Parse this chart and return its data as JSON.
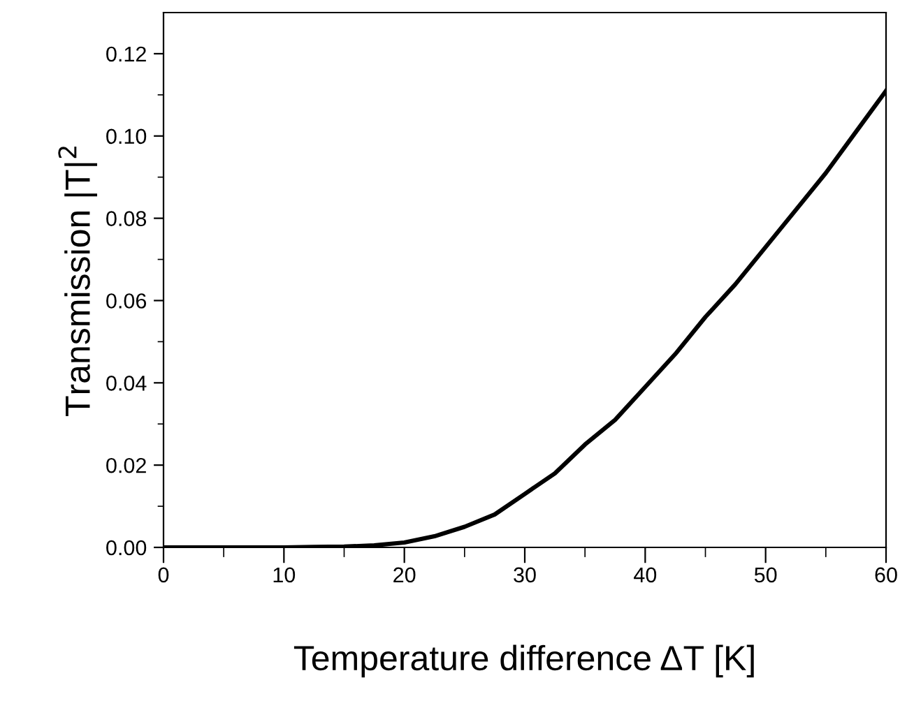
{
  "chart_data": {
    "type": "line",
    "xlabel": "Temperature difference ΔT [K]",
    "ylabel": "Transmission |T|$^{2}$",
    "x": [
      0,
      5,
      10,
      12.5,
      15,
      17.5,
      20,
      22.5,
      25,
      27.5,
      30,
      32.5,
      35,
      37.5,
      40,
      42.5,
      45,
      47.5,
      50,
      52.5,
      55,
      57.5,
      60
    ],
    "series": [
      {
        "color": "#000000",
        "values": [
          0,
          0,
          0,
          0.0001,
          0.0002,
          0.0005,
          0.0012,
          0.0027,
          0.005,
          0.008,
          0.013,
          0.018,
          0.025,
          0.031,
          0.039,
          0.047,
          0.056,
          0.064,
          0.073,
          0.082,
          0.091,
          0.101,
          0.111
        ]
      }
    ],
    "xlim": [
      0,
      60
    ],
    "xticks": [
      0,
      10,
      20,
      30,
      40,
      50,
      60
    ],
    "ylim": [
      0,
      0.13
    ],
    "yticks": [
      {
        "value": 0,
        "label": "0.00"
      },
      {
        "value": 0.02,
        "label": "0.02"
      },
      {
        "value": 0.04,
        "label": "0.04"
      },
      {
        "value": 0.06,
        "label": "0.06"
      },
      {
        "value": 0.08,
        "label": "0.08"
      },
      {
        "value": 0.1,
        "label": "0.10"
      },
      {
        "value": 0.12,
        "label": "0.12"
      }
    ],
    "grid": false,
    "legend": false,
    "marker": "none",
    "line_style": "solid"
  }
}
